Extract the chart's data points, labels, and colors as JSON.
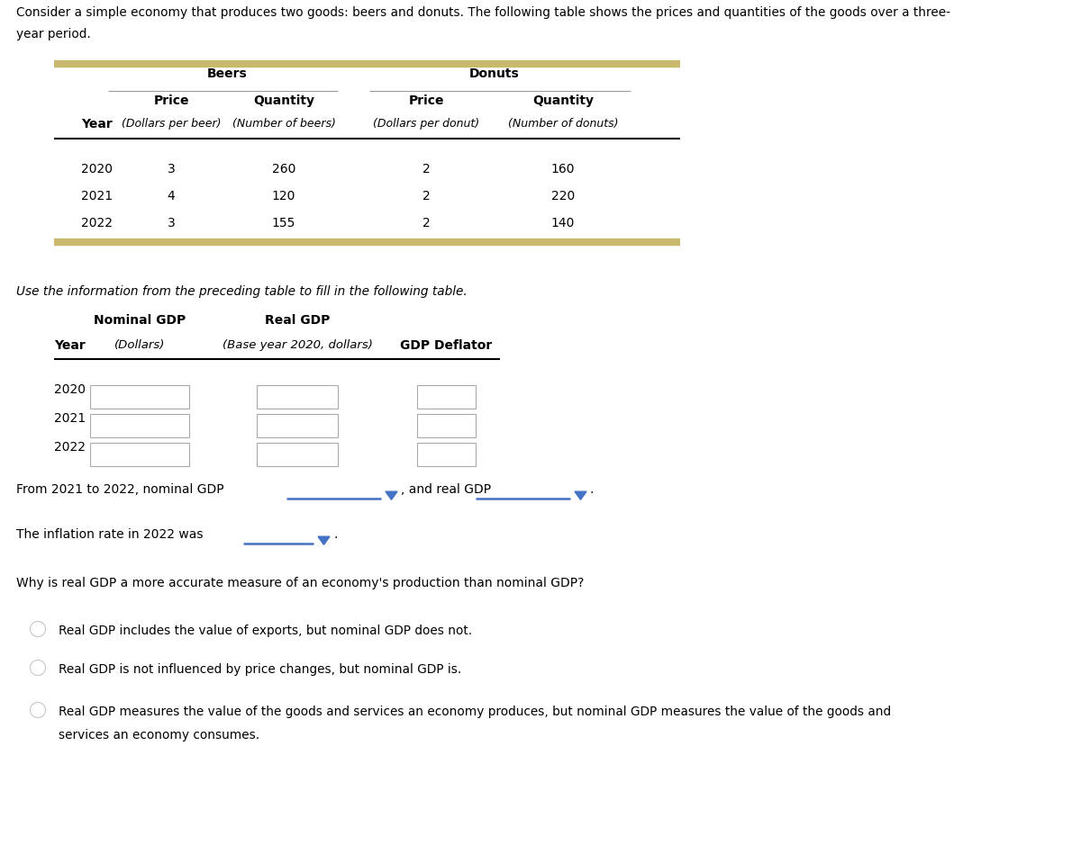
{
  "intro_line1": "Consider a simple economy that produces two goods: beers and donuts. The following table shows the prices and quantities of the goods over a three-",
  "intro_line2": "year period.",
  "table1": {
    "years": [
      "2020",
      "2021",
      "2022"
    ],
    "beer_price": [
      "3",
      "4",
      "3"
    ],
    "beer_qty": [
      "260",
      "120",
      "155"
    ],
    "donut_price": [
      "2",
      "2",
      "2"
    ],
    "donut_qty": [
      "160",
      "220",
      "140"
    ],
    "header_beers": "Beers",
    "header_donuts": "Donuts",
    "col_year": "Year",
    "col_beer_price": "Price",
    "col_beer_qty": "Quantity",
    "col_donut_price": "Price",
    "col_donut_qty": "Quantity",
    "sub_beer_price": "(Dollars per beer)",
    "sub_beer_qty": "(Number of beers)",
    "sub_donut_price": "(Dollars per donut)",
    "sub_donut_qty": "(Number of donuts)"
  },
  "instruction_text": "Use the information from the preceding table to fill in the following table.",
  "table2": {
    "years": [
      "2020",
      "2021",
      "2022"
    ],
    "col_year": "Year",
    "col_nominal": "Nominal GDP",
    "col_real": "Real GDP",
    "col_deflator": "GDP Deflator",
    "sub_nominal": "(Dollars)",
    "sub_real": "(Base year 2020, dollars)"
  },
  "sentence1_a": "From 2021 to 2022, nominal GDP",
  "sentence1_b": ", and real GDP",
  "sentence1_c": ".",
  "sentence2_a": "The inflation rate in 2022 was",
  "sentence2_b": ".",
  "question": "Why is real GDP a more accurate measure of an economy's production than nominal GDP?",
  "option1": "Real GDP includes the value of exports, but nominal GDP does not.",
  "option2": "Real GDP is not influenced by price changes, but nominal GDP is.",
  "option3a": "Real GDP measures the value of the goods and services an economy produces, but nominal GDP measures the value of the goods and",
  "option3b": "services an economy consumes.",
  "gold_color": "#c8b96e",
  "blue_color": "#4472c4",
  "box_color": "#aaaaaa",
  "bg_color": "#ffffff"
}
